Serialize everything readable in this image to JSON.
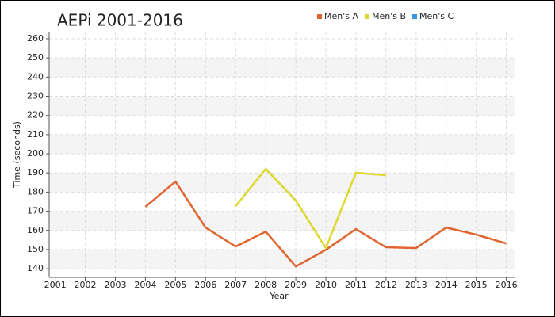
{
  "chart_data": {
    "type": "line",
    "title": "AEPi 2001-2016",
    "x_label": "Year",
    "y_label": "Time (seconds)",
    "x": [
      2001,
      2002,
      2003,
      2004,
      2005,
      2006,
      2007,
      2008,
      2009,
      2010,
      2011,
      2012,
      2013,
      2014,
      2015,
      2016
    ],
    "series": [
      {
        "name": "Men's A",
        "color": "#e0642d",
        "values": [
          null,
          null,
          null,
          172.3,
          185.5,
          161.5,
          151.6,
          159.4,
          141.2,
          149.9,
          160.7,
          151.2,
          150.8,
          161.5,
          157.8,
          153.2
        ]
      },
      {
        "name": "Men's B",
        "color": "#dcd82e",
        "values": [
          null,
          null,
          null,
          null,
          null,
          null,
          172.7,
          192.1,
          175.6,
          150.8,
          190.1,
          188.8,
          null,
          null,
          null,
          null
        ]
      },
      {
        "name": "Men's C",
        "color": "#3c94dc",
        "values": [
          null,
          null,
          null,
          null,
          null,
          null,
          null,
          null,
          null,
          null,
          null,
          null,
          null,
          null,
          null,
          null
        ]
      }
    ],
    "xlim": [
      2000.8,
      2016.3
    ],
    "xticks": [
      2001,
      2002,
      2003,
      2004,
      2005,
      2006,
      2007,
      2008,
      2009,
      2010,
      2011,
      2012,
      2013,
      2014,
      2015,
      2016
    ],
    "ylim": [
      135.5,
      263.7
    ],
    "yticks": [
      140,
      150,
      160,
      170,
      180,
      190,
      200,
      210,
      220,
      230,
      240,
      250,
      260
    ],
    "grid": true
  }
}
